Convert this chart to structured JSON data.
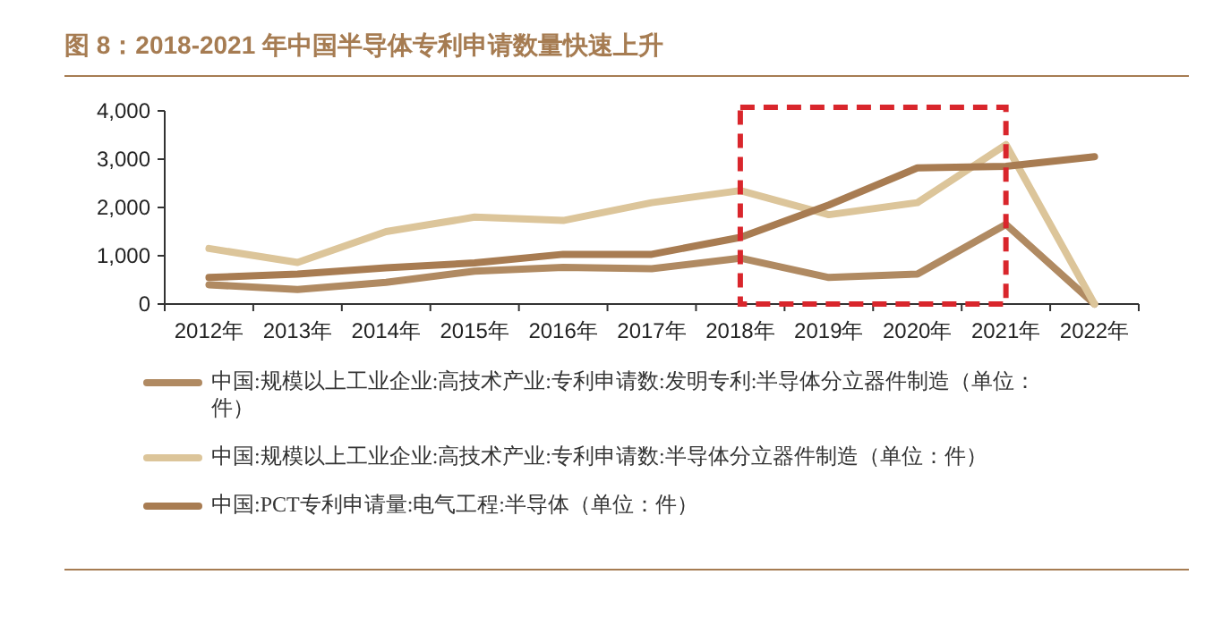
{
  "chart_data": {
    "type": "line",
    "title": "图 8：2018-2021 年中国半导体专利申请数量快速上升",
    "categories": [
      "2012年",
      "2013年",
      "2014年",
      "2015年",
      "2016年",
      "2017年",
      "2018年",
      "2019年",
      "2020年",
      "2021年",
      "2022年"
    ],
    "series": [
      {
        "name": "中国:规模以上工业企业:高技术产业:专利申请数:发明专利:半导体分立器件制造（单位：件）",
        "color": "#b08a62",
        "values": [
          400,
          300,
          450,
          680,
          760,
          730,
          950,
          550,
          620,
          1650,
          0
        ]
      },
      {
        "name": "中国:规模以上工业企业:高技术产业:专利申请数:半导体分立器件制造（单位：件）",
        "color": "#dcc59a",
        "values": [
          1150,
          860,
          1500,
          1800,
          1730,
          2100,
          2350,
          1850,
          2100,
          3300,
          0
        ]
      },
      {
        "name": "中国:PCT专利申请量:电气工程:半导体（单位：件）",
        "color": "#a87c52",
        "values": [
          550,
          620,
          750,
          850,
          1030,
          1030,
          1380,
          2050,
          2820,
          2850,
          3050
        ]
      }
    ],
    "ylim": [
      0,
      4000
    ],
    "yticks": [
      0,
      {
        "value": 1000,
        "label": "1,000"
      },
      {
        "value": 2000,
        "label": "2,000"
      },
      {
        "value": 3000,
        "label": "3,000"
      },
      {
        "value": 4000,
        "label": "4,000"
      }
    ],
    "grid": false,
    "legend": "bottom",
    "marker": "none",
    "line_style": "solid"
  }
}
